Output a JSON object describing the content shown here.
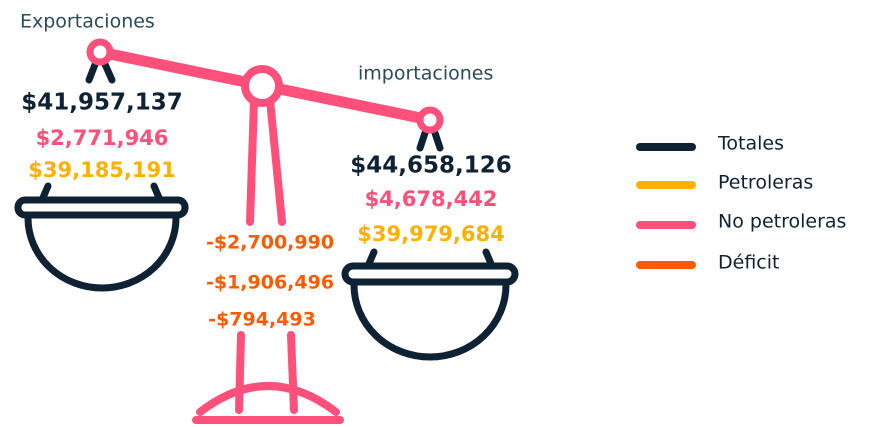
{
  "exports": {
    "label": "Exportaciones",
    "total": "$41,957,137",
    "no_petroleras": "$2,771,946",
    "petroleras": "$39,185,191"
  },
  "imports": {
    "label": "importaciones",
    "total": "$44,658,126",
    "no_petroleras": "$4,678,442",
    "petroleras": "$39,979,684"
  },
  "deficit": {
    "total": "-$2,700,990",
    "no_petroleras": "-$1,906,496",
    "petroleras": "-$794,493"
  },
  "legend": [
    "Totales",
    "Petroleras",
    "No petroleras",
    "Déficit"
  ]
}
